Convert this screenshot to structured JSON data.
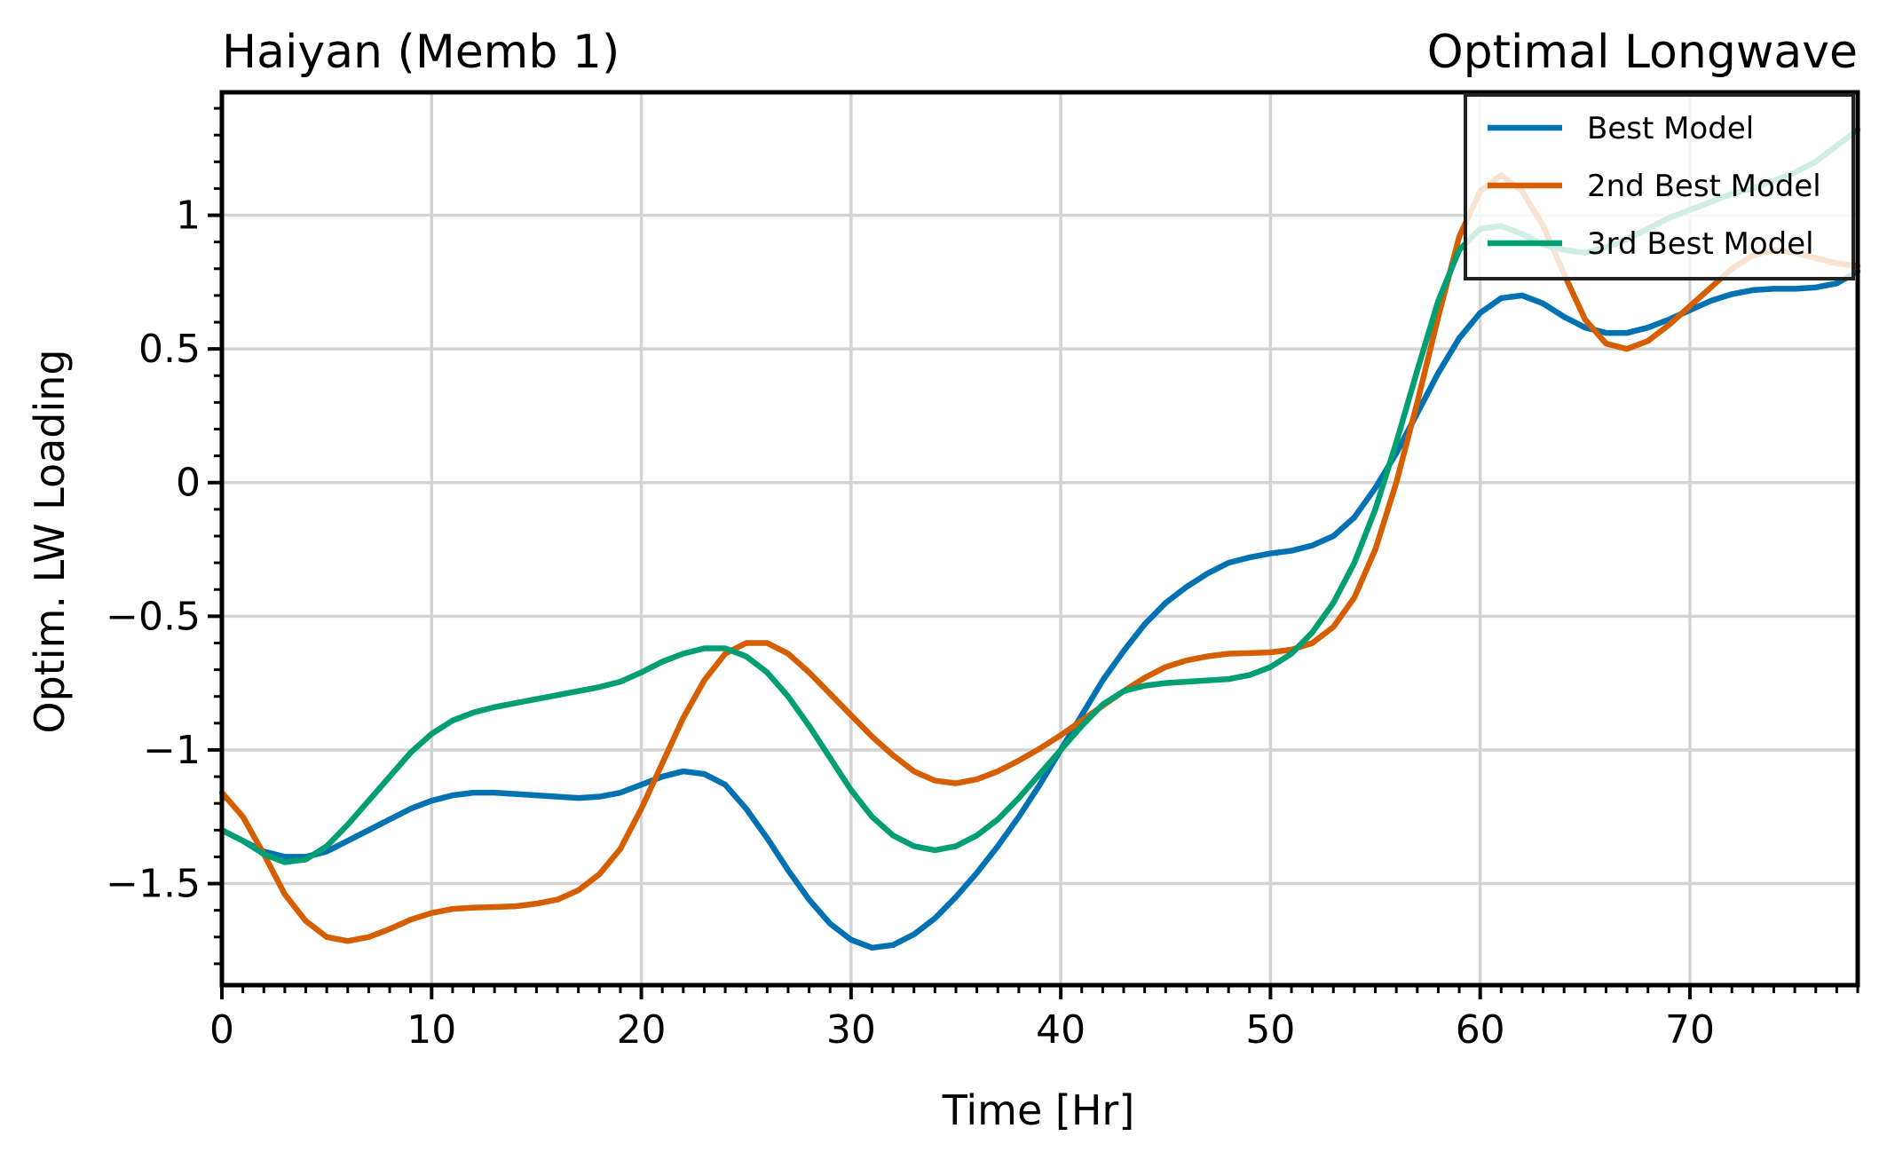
{
  "chart_data": {
    "type": "line",
    "title_left": "Haiyan (Memb 1)",
    "title_right": "Optimal Longwave",
    "xlabel": "Time [Hr]",
    "ylabel": "Optim. LW Loading",
    "xlim": [
      0,
      78
    ],
    "ylim": [
      -1.88,
      1.46
    ],
    "xticks": [
      0,
      10,
      20,
      30,
      40,
      50,
      60,
      70
    ],
    "xtick_labels": [
      "0",
      "10",
      "20",
      "30",
      "40",
      "50",
      "60",
      "70"
    ],
    "yticks": [
      1,
      0.5,
      0,
      -0.5,
      -1,
      -1.5
    ],
    "ytick_labels": [
      "1",
      "0.5",
      "0",
      "−0.5",
      "−1",
      "−1.5"
    ],
    "grid": true,
    "legend_position": "top-right",
    "x": [
      0,
      1,
      2,
      3,
      4,
      5,
      6,
      7,
      8,
      9,
      10,
      11,
      12,
      13,
      14,
      15,
      16,
      17,
      18,
      19,
      20,
      21,
      22,
      23,
      24,
      25,
      26,
      27,
      28,
      29,
      30,
      31,
      32,
      33,
      34,
      35,
      36,
      37,
      38,
      39,
      40,
      41,
      42,
      43,
      44,
      45,
      46,
      47,
      48,
      49,
      50,
      51,
      52,
      53,
      54,
      55,
      56,
      57,
      58,
      59,
      60,
      61,
      62,
      63,
      64,
      65,
      66,
      67,
      68,
      69,
      70,
      71,
      72,
      73,
      74,
      75,
      76,
      77,
      78
    ],
    "series": [
      {
        "name": "Best Model",
        "color": "#0072b2",
        "values": [
          -1.3,
          -1.34,
          -1.38,
          -1.4,
          -1.4,
          -1.38,
          -1.34,
          -1.3,
          -1.26,
          -1.22,
          -1.19,
          -1.17,
          -1.16,
          -1.16,
          -1.165,
          -1.17,
          -1.175,
          -1.18,
          -1.175,
          -1.16,
          -1.13,
          -1.1,
          -1.08,
          -1.09,
          -1.13,
          -1.22,
          -1.33,
          -1.45,
          -1.56,
          -1.65,
          -1.71,
          -1.74,
          -1.73,
          -1.69,
          -1.63,
          -1.55,
          -1.46,
          -1.36,
          -1.25,
          -1.13,
          -1.0,
          -0.87,
          -0.74,
          -0.63,
          -0.53,
          -0.45,
          -0.39,
          -0.34,
          -0.3,
          -0.28,
          -0.265,
          -0.255,
          -0.235,
          -0.2,
          -0.13,
          -0.02,
          0.11,
          0.26,
          0.41,
          0.54,
          0.635,
          0.69,
          0.7,
          0.67,
          0.62,
          0.58,
          0.56,
          0.56,
          0.58,
          0.61,
          0.645,
          0.68,
          0.705,
          0.72,
          0.725,
          0.725,
          0.73,
          0.745,
          0.79
        ]
      },
      {
        "name": "2nd Best Model",
        "color": "#d55e00",
        "values": [
          -1.16,
          -1.25,
          -1.39,
          -1.54,
          -1.64,
          -1.7,
          -1.715,
          -1.7,
          -1.67,
          -1.635,
          -1.61,
          -1.595,
          -1.59,
          -1.588,
          -1.585,
          -1.575,
          -1.56,
          -1.525,
          -1.465,
          -1.37,
          -1.22,
          -1.05,
          -0.88,
          -0.74,
          -0.64,
          -0.6,
          -0.6,
          -0.64,
          -0.71,
          -0.79,
          -0.87,
          -0.95,
          -1.02,
          -1.08,
          -1.115,
          -1.125,
          -1.11,
          -1.08,
          -1.04,
          -0.995,
          -0.945,
          -0.89,
          -0.835,
          -0.78,
          -0.73,
          -0.69,
          -0.665,
          -0.65,
          -0.64,
          -0.638,
          -0.635,
          -0.625,
          -0.6,
          -0.54,
          -0.43,
          -0.25,
          0.0,
          0.3,
          0.62,
          0.92,
          1.09,
          1.15,
          1.09,
          0.96,
          0.78,
          0.61,
          0.52,
          0.5,
          0.53,
          0.59,
          0.66,
          0.73,
          0.8,
          0.85,
          0.87,
          0.86,
          0.84,
          0.82,
          0.81
        ]
      },
      {
        "name": "3rd Best Model",
        "color": "#009e73",
        "values": [
          -1.3,
          -1.34,
          -1.39,
          -1.42,
          -1.41,
          -1.36,
          -1.28,
          -1.19,
          -1.1,
          -1.01,
          -0.94,
          -0.89,
          -0.86,
          -0.84,
          -0.825,
          -0.81,
          -0.795,
          -0.78,
          -0.765,
          -0.745,
          -0.71,
          -0.67,
          -0.64,
          -0.62,
          -0.62,
          -0.65,
          -0.71,
          -0.8,
          -0.91,
          -1.03,
          -1.15,
          -1.25,
          -1.32,
          -1.36,
          -1.375,
          -1.36,
          -1.32,
          -1.26,
          -1.18,
          -1.09,
          -1.0,
          -0.91,
          -0.83,
          -0.78,
          -0.76,
          -0.75,
          -0.745,
          -0.74,
          -0.735,
          -0.72,
          -0.69,
          -0.64,
          -0.56,
          -0.45,
          -0.3,
          -0.1,
          0.15,
          0.42,
          0.68,
          0.87,
          0.95,
          0.96,
          0.93,
          0.89,
          0.87,
          0.86,
          0.88,
          0.91,
          0.95,
          0.99,
          1.02,
          1.05,
          1.08,
          1.1,
          1.13,
          1.16,
          1.2,
          1.26,
          1.32
        ]
      }
    ]
  }
}
